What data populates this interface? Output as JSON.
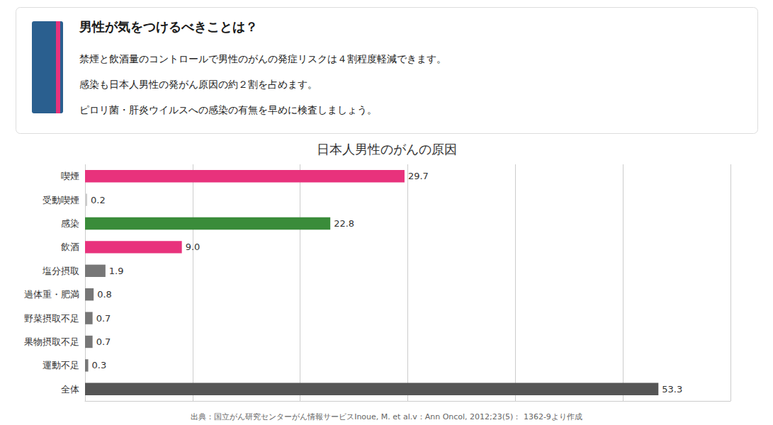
{
  "chart_data": {
    "type": "bar",
    "orientation": "horizontal",
    "title": "日本人男性のがんの原因",
    "subtitle": "男性が気をつけるべきことは？",
    "annotations": [
      "禁煙と飲酒量のコントロールで男性のがんの発症リスクは４割程度軽減できます。",
      "感染も日本人男性の発がん原因の約２割を占めます。",
      "ピロリ菌・肝炎ウイルスへの感染の有無を早めに検査しましょう。",
      "出典：国立がん研究センターがん情報サービスInoue, M. et al.v：Ann Oncol, 2012;23(5)： 1362-9より作成"
    ],
    "categories": [
      "喫煙",
      "受動喫煙",
      "感染",
      "飲酒",
      "塩分摂取",
      "過体重・肥満",
      "野菜摂取不足",
      "果物摂取不足",
      "運動不足",
      "全体"
    ],
    "values": [
      29.7,
      0.2,
      22.8,
      9.0,
      1.9,
      0.8,
      0.7,
      0.7,
      0.3,
      53.3
    ],
    "value_labels": [
      "29.7",
      "0.2",
      "22.8",
      "9.0",
      "1.9",
      "0.8",
      "0.7",
      "0.7",
      "0.3",
      "53.3"
    ],
    "colors": [
      "#e8327c",
      "#cccccc",
      "#3a8c3a",
      "#e8327c",
      "#777777",
      "#777777",
      "#777777",
      "#777777",
      "#777777",
      "#555555"
    ],
    "xlim": [
      0,
      60
    ],
    "xticks": [
      0,
      10,
      20,
      30,
      40,
      50,
      60
    ],
    "grid": true,
    "data_labels": true,
    "tick_labels": "y"
  }
}
